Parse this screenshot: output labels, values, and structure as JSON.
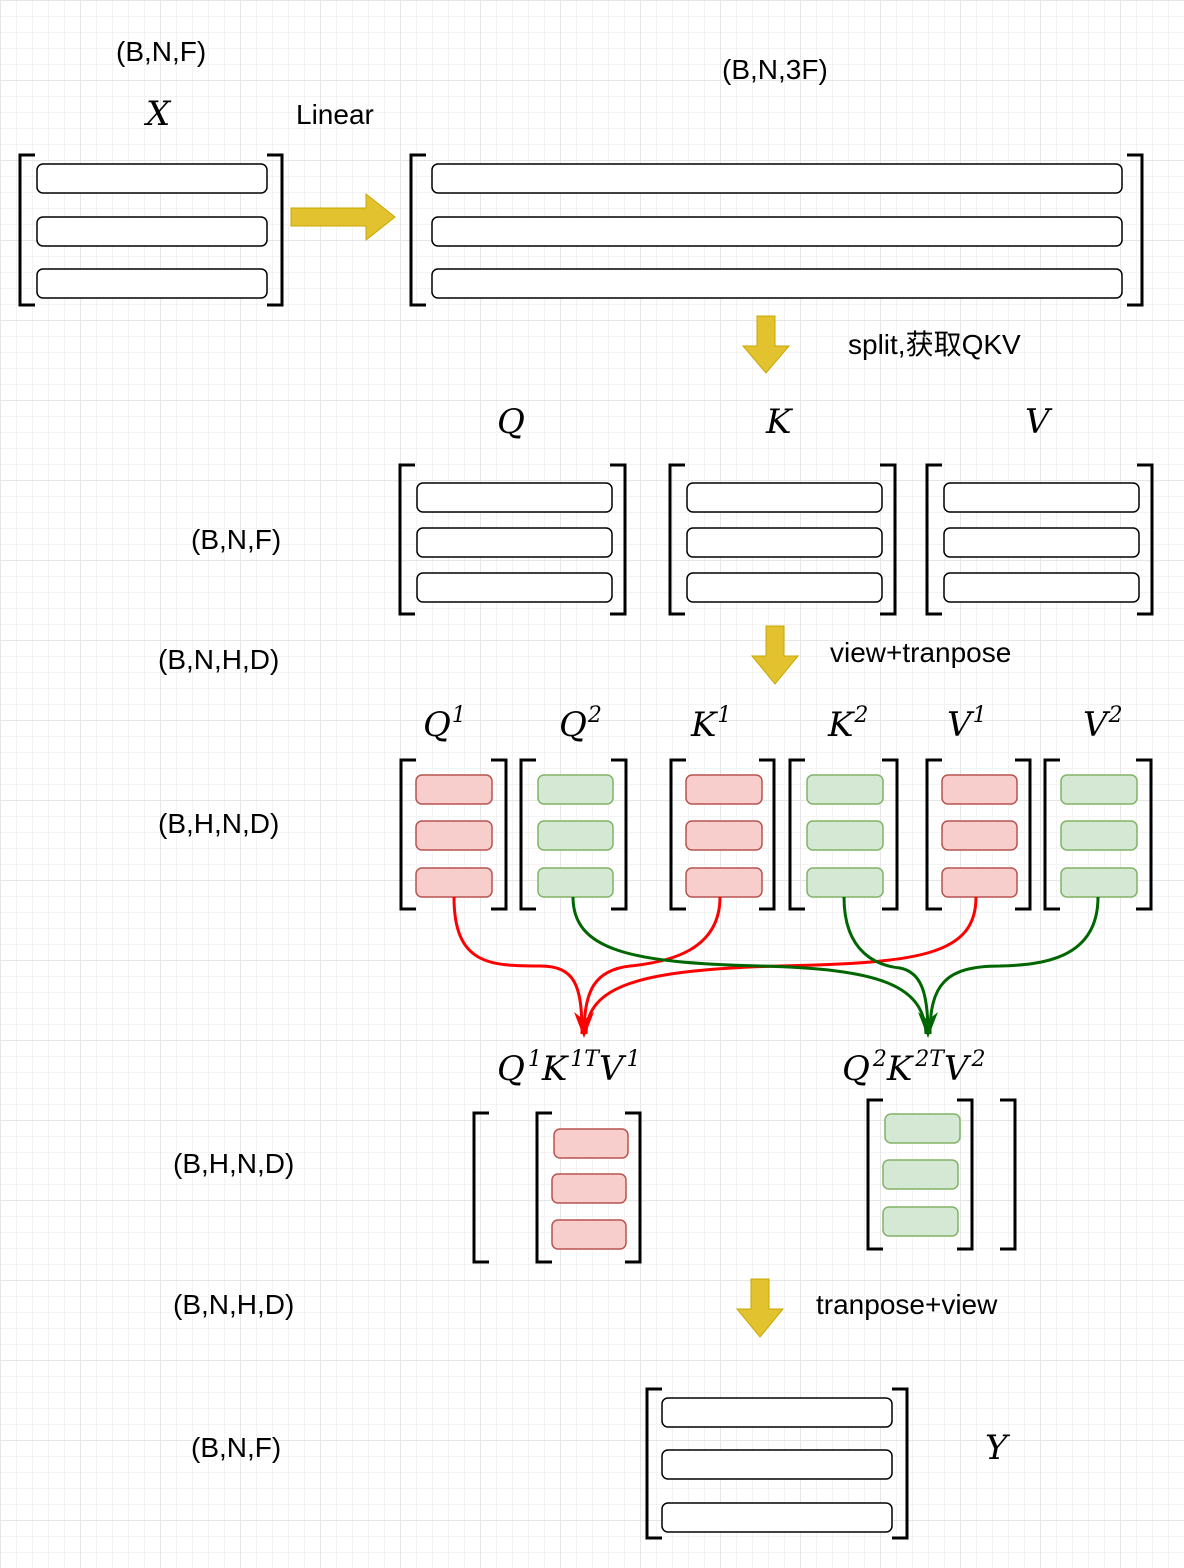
{
  "colors": {
    "arrow_fill": "#e3c22f",
    "arrow_stroke": "#c9a700",
    "head1_fill": "#f8cecc",
    "head1_stroke": "#b85450",
    "head2_fill": "#d5e8d4",
    "head2_stroke": "#82b366",
    "head1_flow": "#ff0000",
    "head2_flow": "#006600"
  },
  "shapes": {
    "x_input": "(B,N,F)",
    "linear_output": "(B,N,3F)",
    "qkv_split": "(B,N,F)",
    "qkv_view": "(B,N,H,D)",
    "heads": "(B,H,N,D)",
    "attention_out": "(B,H,N,D)",
    "attention_transposed": "(B,N,H,D)",
    "y_output": "(B,N,F)"
  },
  "operations": {
    "linear": "Linear",
    "split": "split,获取QKV",
    "view_transpose": "view+tranpose",
    "transpose_view": "tranpose+view"
  },
  "matrices": {
    "x": "X",
    "q": "Q",
    "k": "K",
    "v": "V",
    "y": "Y"
  },
  "heads": {
    "q1": {
      "base": "Q",
      "sup": "1"
    },
    "q2": {
      "base": "Q",
      "sup": "2"
    },
    "k1": {
      "base": "K",
      "sup": "1"
    },
    "k2": {
      "base": "K",
      "sup": "2"
    },
    "v1": {
      "base": "V",
      "sup": "1"
    },
    "v2": {
      "base": "V",
      "sup": "2"
    }
  },
  "attention": {
    "head1": {
      "q": "Q",
      "q_sup": "1",
      "k": "K",
      "k_sup": "1T",
      "v": "V",
      "v_sup": "1"
    },
    "head2": {
      "q": "Q",
      "q_sup": "2",
      "k": "K",
      "k_sup": "2T",
      "v": "V",
      "v_sup": "2"
    }
  }
}
